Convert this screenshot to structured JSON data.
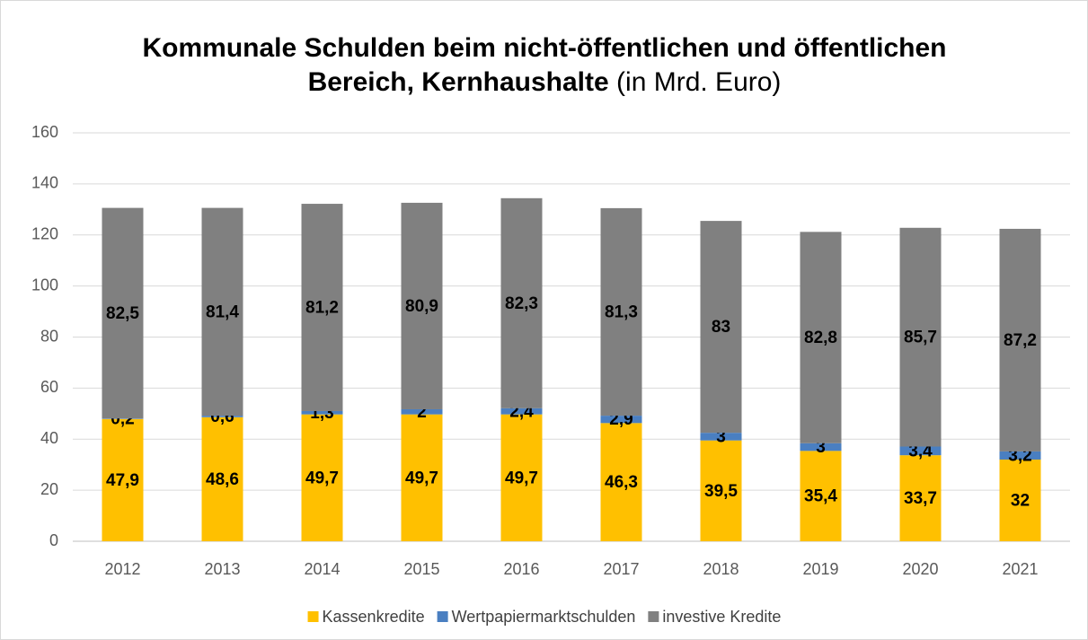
{
  "chart_data": {
    "type": "stacked_bar",
    "title": "Kommunale Schulden beim nicht-öffentlichen und öffentlichen Bereich, Kernhaushalte",
    "subtitle": "(in Mrd. Euro)",
    "categories": [
      "2012",
      "2013",
      "2014",
      "2015",
      "2016",
      "2017",
      "2018",
      "2019",
      "2020",
      "2021"
    ],
    "series": [
      {
        "name": "Kassenkredite",
        "color": "#ffc000",
        "values": [
          47.9,
          48.6,
          49.7,
          49.7,
          49.7,
          46.3,
          39.5,
          35.4,
          33.7,
          32
        ],
        "value_labels": [
          "47,9",
          "48,6",
          "49,7",
          "49,7",
          "49,7",
          "46,3",
          "39,5",
          "35,4",
          "33,7",
          "32"
        ]
      },
      {
        "name": "Wertpapiermarktschulden",
        "color": "#4a7fc1",
        "values": [
          0.2,
          0.6,
          1.3,
          2,
          2.4,
          2.9,
          3,
          3,
          3.4,
          3.2
        ],
        "value_labels": [
          "0,2",
          "0,6",
          "1,3",
          "2",
          "2,4",
          "2,9",
          "3",
          "3",
          "3,4",
          "3,2"
        ]
      },
      {
        "name": "investive Kredite",
        "color": "#808080",
        "values": [
          82.5,
          81.4,
          81.2,
          80.9,
          82.3,
          81.3,
          83,
          82.8,
          85.7,
          87.2
        ],
        "value_labels": [
          "82,5",
          "81,4",
          "81,2",
          "80,9",
          "82,3",
          "81,3",
          "83",
          "82,8",
          "85,7",
          "87,2"
        ]
      }
    ],
    "ylim": [
      0,
      160
    ],
    "yticks": [
      0,
      20,
      40,
      60,
      80,
      100,
      120,
      140,
      160
    ],
    "grid": true,
    "legend": "bottom"
  }
}
